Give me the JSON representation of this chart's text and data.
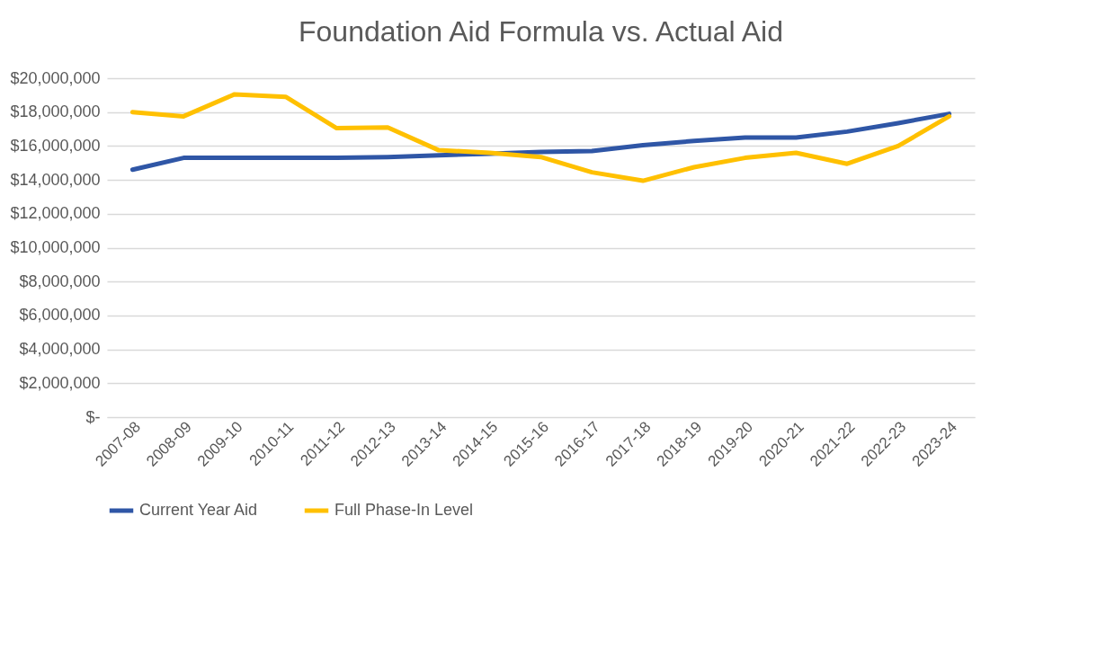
{
  "chart_data": {
    "type": "line",
    "title": "Foundation Aid Formula vs. Actual Aid",
    "categories": [
      "2007-08",
      "2008-09",
      "2009-10",
      "2010-11",
      "2011-12",
      "2012-13",
      "2013-14",
      "2014-15",
      "2015-16",
      "2016-17",
      "2017-18",
      "2018-19",
      "2019-20",
      "2020-21",
      "2021-22",
      "2022-23",
      "2023-24"
    ],
    "series": [
      {
        "name": "Current Year Aid",
        "color": "#2f56a6",
        "values": [
          14600000,
          15300000,
          15300000,
          15300000,
          15300000,
          15350000,
          15450000,
          15550000,
          15650000,
          15700000,
          16050000,
          16300000,
          16500000,
          16500000,
          16850000,
          17350000,
          17900000
        ]
      },
      {
        "name": "Full Phase-In Level",
        "color": "#ffc000",
        "values": [
          18000000,
          17750000,
          19050000,
          18900000,
          17050000,
          17100000,
          15750000,
          15600000,
          15350000,
          14450000,
          13950000,
          14750000,
          15300000,
          15600000,
          14950000,
          16000000,
          17750000
        ]
      }
    ],
    "ylim": [
      0,
      20000000
    ],
    "yticks": [
      {
        "value": 0,
        "label": "$-"
      },
      {
        "value": 2000000,
        "label": "$2,000,000"
      },
      {
        "value": 4000000,
        "label": "$4,000,000"
      },
      {
        "value": 6000000,
        "label": "$6,000,000"
      },
      {
        "value": 8000000,
        "label": "$8,000,000"
      },
      {
        "value": 10000000,
        "label": "$10,000,000"
      },
      {
        "value": 12000000,
        "label": "$12,000,000"
      },
      {
        "value": 14000000,
        "label": "$14,000,000"
      },
      {
        "value": 16000000,
        "label": "$16,000,000"
      },
      {
        "value": 18000000,
        "label": "$18,000,000"
      },
      {
        "value": 20000000,
        "label": "$20,000,000"
      }
    ],
    "grid": "y",
    "legend": "bottom",
    "marker": "none",
    "line_style": "solid"
  }
}
